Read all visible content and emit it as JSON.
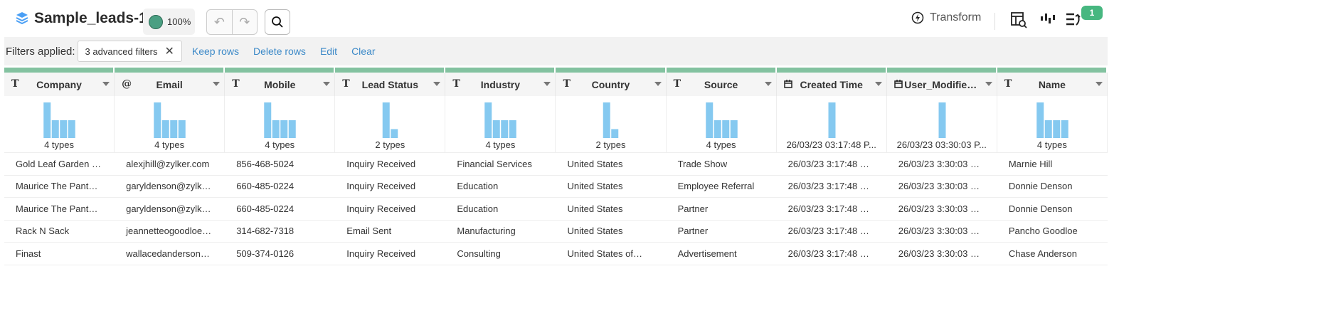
{
  "header": {
    "title": "Sample_leads-1",
    "quality_pct": "100%",
    "transform_label": "Transform",
    "badge_count": "1"
  },
  "filters": {
    "label": "Filters applied:",
    "chip": "3 advanced filters",
    "actions": [
      "Keep rows",
      "Delete rows",
      "Edit",
      "Clear"
    ]
  },
  "colors": {
    "accent_green": "#83c2a0",
    "bar_blue": "#85c9f0",
    "link_blue": "#3d8ac8",
    "badge_green": "#47b780"
  },
  "columns": [
    {
      "name": "Company",
      "type": "text",
      "summary": "4 types",
      "hist": [
        2,
        1,
        1,
        1
      ]
    },
    {
      "name": "Email",
      "type": "email",
      "summary": "4 types",
      "hist": [
        2,
        1,
        1,
        1
      ]
    },
    {
      "name": "Mobile",
      "type": "text",
      "summary": "4 types",
      "hist": [
        2,
        1,
        1,
        1
      ]
    },
    {
      "name": "Lead Status",
      "type": "text",
      "summary": "2 types",
      "hist": [
        4,
        1
      ]
    },
    {
      "name": "Industry",
      "type": "text",
      "summary": "4 types",
      "hist": [
        2,
        1,
        1,
        1
      ]
    },
    {
      "name": "Country",
      "type": "text",
      "summary": "2 types",
      "hist": [
        4,
        1
      ]
    },
    {
      "name": "Source",
      "type": "text",
      "summary": "4 types",
      "hist": [
        2,
        1,
        1,
        1
      ]
    },
    {
      "name": "Created Time",
      "type": "date",
      "summary": "26/03/23 03:17:48 P...",
      "hist": [
        1
      ]
    },
    {
      "name": "User_Modified_...",
      "type": "date",
      "summary": "26/03/23 03:30:03 P...",
      "hist": [
        1
      ]
    },
    {
      "name": "Name",
      "type": "text",
      "summary": "4 types",
      "hist": [
        2,
        1,
        1,
        1
      ]
    }
  ],
  "rows": [
    [
      "Gold Leaf Garden …",
      "alexjhill@zylker.com",
      "856-468-5024",
      "Inquiry Received",
      "Financial Services",
      "United States",
      "Trade Show",
      "26/03/23 3:17:48 …",
      "26/03/23 3:30:03 …",
      "Marnie Hill"
    ],
    [
      "Maurice The Pant…",
      "garyldenson@zylk…",
      "660-485-0224",
      "Inquiry Received",
      "Education",
      "United States",
      "Employee Referral",
      "26/03/23 3:17:48 …",
      "26/03/23 3:30:03 …",
      "Donnie Denson"
    ],
    [
      "Maurice The Pant…",
      "garyldenson@zylk…",
      "660-485-0224",
      "Inquiry Received",
      "Education",
      "United States",
      "Partner",
      "26/03/23 3:17:48 …",
      "26/03/23 3:30:03 …",
      "Donnie Denson"
    ],
    [
      "Rack N Sack",
      "jeannetteogoodloe…",
      "314-682-7318",
      "Email Sent",
      "Manufacturing",
      "United States",
      "Partner",
      "26/03/23 3:17:48 …",
      "26/03/23 3:30:03 …",
      "Pancho Goodloe"
    ],
    [
      "Finast",
      "wallacedanderson…",
      "509-374-0126",
      "Inquiry Received",
      "Consulting",
      "United States of…",
      "Advertisement",
      "26/03/23 3:17:48 …",
      "26/03/23 3:30:03 …",
      "Chase Anderson"
    ]
  ]
}
